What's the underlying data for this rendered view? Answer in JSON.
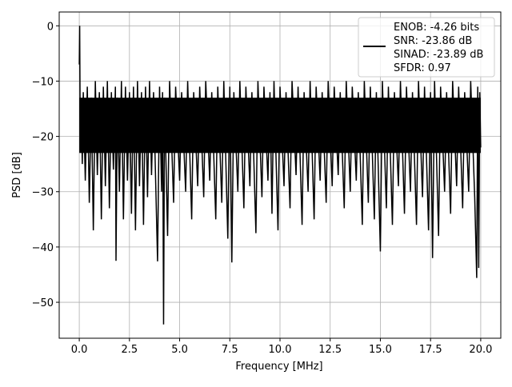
{
  "chart_data": {
    "type": "line",
    "title": "",
    "xlabel": "Frequency [MHz]",
    "ylabel": "PSD [dB]",
    "xlim": [
      -1.0,
      21.0
    ],
    "ylim": [
      -56.5,
      2.5
    ],
    "xticks": [
      "0.0",
      "2.5",
      "5.0",
      "7.5",
      "10.0",
      "12.5",
      "15.0",
      "17.5",
      "20.0"
    ],
    "xtick_values": [
      0,
      2.5,
      5,
      7.5,
      10,
      12.5,
      15,
      17.5,
      20
    ],
    "yticks": [
      "0",
      "−10",
      "−20",
      "−30",
      "−40",
      "−50"
    ],
    "ytick_values": [
      0,
      -10,
      -20,
      -30,
      -40,
      -50
    ],
    "grid": true,
    "legend_placement": "upper right",
    "line_color": "#000000",
    "core_band_db": [
      -23,
      -13
    ],
    "legend": [
      "ENOB: -4.26 bits",
      "SNR: -23.86 dB",
      "SINAD: -23.89 dB",
      "SFDR: 0.97"
    ],
    "series": [
      {
        "points": [
          [
            0,
            -7
          ],
          [
            0.02,
            0
          ],
          [
            0.05,
            -22
          ],
          [
            0.1,
            -14
          ],
          [
            0.15,
            -25
          ],
          [
            0.2,
            -12
          ],
          [
            0.3,
            -28
          ],
          [
            0.4,
            -11
          ],
          [
            0.5,
            -32
          ],
          [
            0.6,
            -13
          ],
          [
            0.7,
            -37
          ],
          [
            0.8,
            -10
          ],
          [
            0.9,
            -27
          ],
          [
            1.0,
            -12
          ],
          [
            1.1,
            -35
          ],
          [
            1.2,
            -11
          ],
          [
            1.3,
            -29
          ],
          [
            1.4,
            -10
          ],
          [
            1.5,
            -33
          ],
          [
            1.6,
            -12
          ],
          [
            1.7,
            -26
          ],
          [
            1.8,
            -11
          ],
          [
            1.83,
            -42.5
          ],
          [
            1.9,
            -13
          ],
          [
            2.0,
            -30
          ],
          [
            2.1,
            -10
          ],
          [
            2.2,
            -35
          ],
          [
            2.3,
            -11
          ],
          [
            2.4,
            -28
          ],
          [
            2.5,
            -12
          ],
          [
            2.6,
            -34
          ],
          [
            2.7,
            -11
          ],
          [
            2.8,
            -37
          ],
          [
            2.9,
            -10
          ],
          [
            3.0,
            -29
          ],
          [
            3.1,
            -12
          ],
          [
            3.2,
            -36
          ],
          [
            3.3,
            -11
          ],
          [
            3.4,
            -31
          ],
          [
            3.5,
            -10
          ],
          [
            3.6,
            -27
          ],
          [
            3.7,
            -12
          ],
          [
            3.9,
            -42.6
          ],
          [
            4.0,
            -11
          ],
          [
            4.1,
            -30
          ],
          [
            4.15,
            -12
          ],
          [
            4.2,
            -54
          ],
          [
            4.25,
            -13
          ],
          [
            4.4,
            -38
          ],
          [
            4.5,
            -10
          ],
          [
            4.7,
            -32
          ],
          [
            4.8,
            -11
          ],
          [
            5.0,
            -28
          ],
          [
            5.1,
            -12
          ],
          [
            5.3,
            -30
          ],
          [
            5.4,
            -10
          ],
          [
            5.6,
            -35
          ],
          [
            5.7,
            -12
          ],
          [
            5.9,
            -29
          ],
          [
            6.0,
            -11
          ],
          [
            6.2,
            -31
          ],
          [
            6.3,
            -10
          ],
          [
            6.5,
            -28
          ],
          [
            6.6,
            -12
          ],
          [
            6.8,
            -35
          ],
          [
            6.9,
            -11
          ],
          [
            7.1,
            -32
          ],
          [
            7.2,
            -10
          ],
          [
            7.4,
            -38.5
          ],
          [
            7.5,
            -11
          ],
          [
            7.6,
            -42.8
          ],
          [
            7.7,
            -12
          ],
          [
            7.9,
            -30
          ],
          [
            8.0,
            -10
          ],
          [
            8.2,
            -33
          ],
          [
            8.3,
            -11
          ],
          [
            8.5,
            -29
          ],
          [
            8.6,
            -12
          ],
          [
            8.8,
            -37.5
          ],
          [
            8.9,
            -10
          ],
          [
            9.1,
            -31
          ],
          [
            9.2,
            -11
          ],
          [
            9.4,
            -28
          ],
          [
            9.5,
            -12
          ],
          [
            9.6,
            -34
          ],
          [
            9.7,
            -10
          ],
          [
            9.9,
            -37
          ],
          [
            10.0,
            -11
          ],
          [
            10.2,
            -29
          ],
          [
            10.3,
            -12
          ],
          [
            10.5,
            -33
          ],
          [
            10.6,
            -10
          ],
          [
            10.8,
            -27
          ],
          [
            10.9,
            -11
          ],
          [
            11.1,
            -36
          ],
          [
            11.2,
            -12
          ],
          [
            11.4,
            -30
          ],
          [
            11.5,
            -10
          ],
          [
            11.7,
            -35
          ],
          [
            11.8,
            -11
          ],
          [
            12.0,
            -28
          ],
          [
            12.1,
            -12
          ],
          [
            12.3,
            -32
          ],
          [
            12.4,
            -10
          ],
          [
            12.6,
            -29
          ],
          [
            12.7,
            -11
          ],
          [
            12.9,
            -27
          ],
          [
            13.0,
            -12
          ],
          [
            13.2,
            -33
          ],
          [
            13.3,
            -10
          ],
          [
            13.5,
            -30
          ],
          [
            13.6,
            -11
          ],
          [
            13.8,
            -28
          ],
          [
            13.9,
            -12
          ],
          [
            14.1,
            -36
          ],
          [
            14.2,
            -10
          ],
          [
            14.4,
            -32
          ],
          [
            14.5,
            -11
          ],
          [
            14.7,
            -35
          ],
          [
            14.8,
            -12
          ],
          [
            15.0,
            -40.8
          ],
          [
            15.1,
            -10
          ],
          [
            15.3,
            -33
          ],
          [
            15.4,
            -11
          ],
          [
            15.6,
            -36
          ],
          [
            15.7,
            -12
          ],
          [
            15.9,
            -29
          ],
          [
            16.0,
            -10
          ],
          [
            16.2,
            -34
          ],
          [
            16.3,
            -11
          ],
          [
            16.5,
            -30
          ],
          [
            16.6,
            -12
          ],
          [
            16.8,
            -36
          ],
          [
            16.9,
            -10
          ],
          [
            17.1,
            -31
          ],
          [
            17.2,
            -11
          ],
          [
            17.4,
            -37
          ],
          [
            17.5,
            -12
          ],
          [
            17.6,
            -42
          ],
          [
            17.7,
            -10
          ],
          [
            17.9,
            -38
          ],
          [
            18.0,
            -11
          ],
          [
            18.2,
            -30
          ],
          [
            18.3,
            -12
          ],
          [
            18.5,
            -34
          ],
          [
            18.6,
            -10
          ],
          [
            18.8,
            -29
          ],
          [
            18.9,
            -11
          ],
          [
            19.1,
            -33
          ],
          [
            19.2,
            -12
          ],
          [
            19.4,
            -30
          ],
          [
            19.5,
            -10
          ],
          [
            19.7,
            -31
          ],
          [
            19.8,
            -45.6
          ],
          [
            19.85,
            -11
          ],
          [
            19.9,
            -43.8
          ],
          [
            19.95,
            -12
          ],
          [
            20.0,
            -22
          ]
        ]
      }
    ]
  }
}
